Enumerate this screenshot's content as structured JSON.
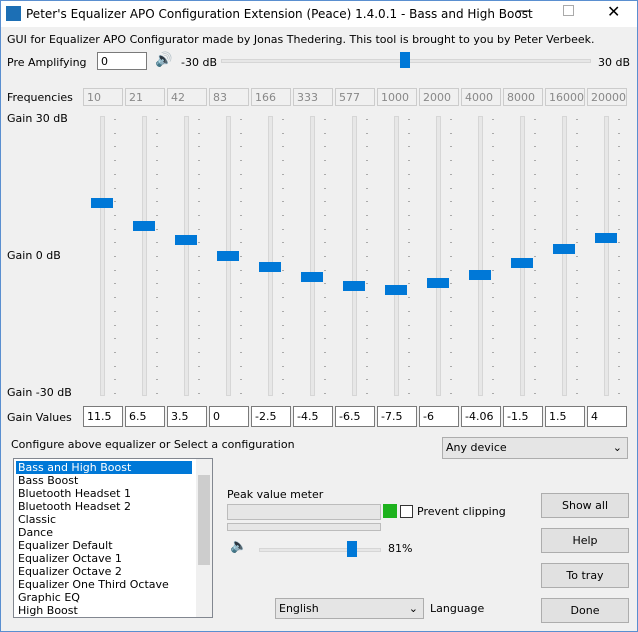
{
  "window": {
    "title": "Peter's Equalizer APO Configuration Extension (Peace) 1.4.0.1 - Bass and High Boost"
  },
  "credits": "GUI for Equalizer APO Configurator made by Jonas Thedering. This tool is brought to you by Peter Verbeek.",
  "preamp": {
    "label": "Pre Amplifying",
    "value": 0,
    "ticks": [
      {
        "value": -30,
        "label": "-30 dB"
      },
      {
        "value": 30,
        "label": "30 dB"
      }
    ]
  },
  "frequencies": {
    "label": "Frequencies",
    "values": [
      "10",
      "21",
      "42",
      "83",
      "166",
      "333",
      "577",
      "1000",
      "2000",
      "4000",
      "8000",
      "16000",
      "20000"
    ]
  },
  "gain_ticks": [
    {
      "value": 30,
      "label": "Gain 30 dB"
    },
    {
      "value": 0,
      "label": "Gain 0 dB"
    },
    {
      "value": -30,
      "label": "Gain -30 dB"
    }
  ],
  "gain_values": {
    "label": "Gain Values",
    "values": [
      11.5,
      6.5,
      3.5,
      0,
      -2.5,
      -4.5,
      -6.5,
      -7.5,
      -6,
      -4.06,
      -1.5,
      1.5,
      4
    ]
  },
  "config": {
    "label": "Configure above equalizer or Select a configuration",
    "device": "Any device",
    "items": [
      "Bass and High Boost",
      "Bass Boost",
      "Bluetooth Headset 1",
      "Bluetooth Headset 2",
      "Classic",
      "Dance",
      "Equalizer Default",
      "Equalizer Octave 1",
      "Equalizer Octave 2",
      "Equalizer One Third Octave",
      "Graphic EQ",
      "High Boost"
    ]
  },
  "meter": {
    "label": "Peak value meter",
    "prevent_clipping": "Prevent clipping",
    "volume": "81%"
  },
  "buttons": [
    "Show all",
    "Help",
    "To tray",
    "Done"
  ],
  "language": {
    "value": "English",
    "label": "Language"
  }
}
